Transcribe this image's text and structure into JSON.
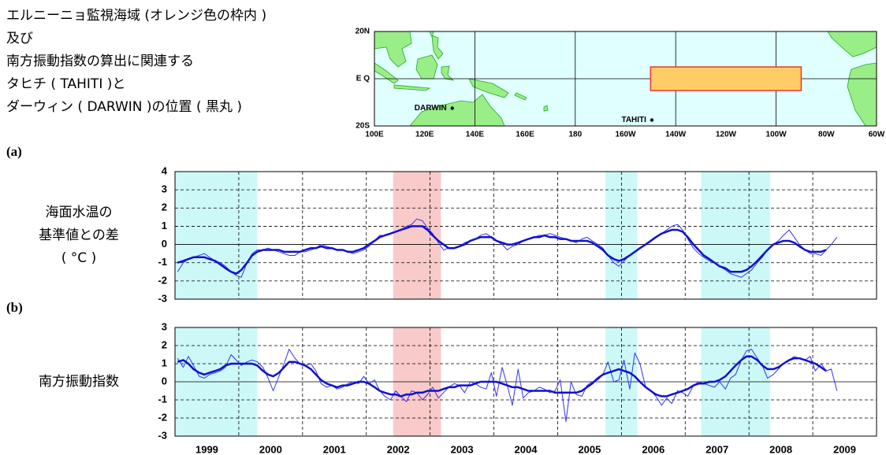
{
  "chart_data": [
    {
      "type": "map",
      "title_lines": [
        "エルニーニョ監視海域 (オレンジ色の枠内 )",
        "及び",
        "南方振動指数の算出に関連する",
        "タヒチ ( TAHITI )と",
        "ダーウィン ( DARWIN )の位置 ( 黒丸 )"
      ],
      "xlim": [
        100,
        300
      ],
      "ylim": [
        -20,
        20
      ],
      "xticks": [
        {
          "value": 100,
          "label": "100E"
        },
        {
          "value": 120,
          "label": "120E"
        },
        {
          "value": 140,
          "label": "140E"
        },
        {
          "value": 160,
          "label": "160E"
        },
        {
          "value": 180,
          "label": "180"
        },
        {
          "value": 200,
          "label": "160W"
        },
        {
          "value": 220,
          "label": "140W"
        },
        {
          "value": 240,
          "label": "120W"
        },
        {
          "value": 260,
          "label": "100W"
        },
        {
          "value": 280,
          "label": "80W"
        },
        {
          "value": 300,
          "label": "60W"
        }
      ],
      "yticks": [
        {
          "value": 20,
          "label": "20N"
        },
        {
          "value": 0,
          "label": "E Q"
        },
        {
          "value": -20,
          "label": "20S"
        }
      ],
      "grid_x": [
        140,
        180,
        220,
        260
      ],
      "grid_y": [
        0
      ],
      "region": {
        "lon": [
          210,
          270
        ],
        "lat": [
          -5,
          5
        ],
        "color": "#ffcc66",
        "edge": "#ee3333"
      },
      "points": [
        {
          "name": "DARWIN",
          "lon": 131,
          "lat": -12.5
        },
        {
          "name": "TAHITI",
          "lon": 210.5,
          "lat": -17.5
        }
      ],
      "ocean_color": "#e0ffff",
      "land_color": "#99ee88"
    },
    {
      "type": "line",
      "panel": "(a)",
      "ylabel": [
        "海面水温の",
        "基準値との差",
        "( °C )"
      ],
      "xlim": [
        1999,
        2010
      ],
      "ylim": [
        -3,
        4
      ],
      "yticks": [
        -3,
        -2,
        -1,
        0,
        1,
        2,
        3,
        4
      ],
      "xgrid": [
        2000,
        2001,
        2002,
        2003,
        2004,
        2005,
        2006,
        2007,
        2008,
        2009
      ],
      "periods": [
        {
          "start": 1999.0,
          "end": 2000.29,
          "color": "#ccf8f8"
        },
        {
          "start": 2002.42,
          "end": 2003.17,
          "color": "#f9caca"
        },
        {
          "start": 2005.75,
          "end": 2006.25,
          "color": "#ccf8f8"
        },
        {
          "start": 2007.25,
          "end": 2008.33,
          "color": "#ccf8f8"
        }
      ],
      "x": [
        1999.04,
        1999.13,
        1999.21,
        1999.29,
        1999.38,
        1999.46,
        1999.54,
        1999.63,
        1999.71,
        1999.79,
        1999.88,
        1999.96,
        2000.04,
        2000.13,
        2000.21,
        2000.29,
        2000.38,
        2000.46,
        2000.54,
        2000.63,
        2000.71,
        2000.79,
        2000.88,
        2000.96,
        2001.04,
        2001.13,
        2001.21,
        2001.29,
        2001.38,
        2001.46,
        2001.54,
        2001.63,
        2001.71,
        2001.79,
        2001.88,
        2001.96,
        2002.04,
        2002.13,
        2002.21,
        2002.29,
        2002.38,
        2002.46,
        2002.54,
        2002.63,
        2002.71,
        2002.79,
        2002.88,
        2002.96,
        2003.04,
        2003.13,
        2003.21,
        2003.29,
        2003.38,
        2003.46,
        2003.54,
        2003.63,
        2003.71,
        2003.79,
        2003.88,
        2003.96,
        2004.04,
        2004.13,
        2004.21,
        2004.29,
        2004.38,
        2004.46,
        2004.54,
        2004.63,
        2004.71,
        2004.79,
        2004.88,
        2004.96,
        2005.04,
        2005.13,
        2005.21,
        2005.29,
        2005.38,
        2005.46,
        2005.54,
        2005.63,
        2005.71,
        2005.79,
        2005.88,
        2005.96,
        2006.04,
        2006.13,
        2006.21,
        2006.29,
        2006.38,
        2006.46,
        2006.54,
        2006.63,
        2006.71,
        2006.79,
        2006.88,
        2006.96,
        2007.04,
        2007.13,
        2007.21,
        2007.29,
        2007.38,
        2007.46,
        2007.54,
        2007.63,
        2007.71,
        2007.79,
        2007.88,
        2007.96,
        2008.04,
        2008.13,
        2008.21,
        2008.29,
        2008.38,
        2008.46,
        2008.54,
        2008.63,
        2008.71,
        2008.79,
        2008.88,
        2008.96,
        2009.04,
        2009.13,
        2009.21,
        2009.29,
        2009.38
      ],
      "series": [
        {
          "color": "#3333ee",
          "width": 1,
          "values": [
            -1.5,
            -1.0,
            -0.8,
            -0.7,
            -0.6,
            -0.5,
            -0.7,
            -0.9,
            -1.0,
            -1.2,
            -1.5,
            -1.7,
            -1.8,
            -1.0,
            -0.5,
            -0.3,
            -0.3,
            -0.2,
            -0.3,
            -0.4,
            -0.5,
            -0.6,
            -0.6,
            -0.4,
            -0.4,
            -0.3,
            -0.2,
            0.0,
            -0.1,
            -0.2,
            -0.3,
            -0.3,
            -0.4,
            -0.5,
            -0.4,
            -0.3,
            -0.1,
            0.2,
            0.5,
            0.5,
            0.6,
            0.7,
            0.8,
            1.0,
            1.1,
            1.4,
            1.3,
            0.9,
            0.6,
            0.1,
            -0.3,
            -0.2,
            -0.2,
            -0.1,
            0.1,
            0.2,
            0.3,
            0.5,
            0.6,
            0.4,
            0.2,
            0.0,
            -0.3,
            -0.1,
            0.0,
            0.2,
            0.3,
            0.4,
            0.5,
            0.5,
            0.6,
            0.5,
            0.4,
            0.3,
            0.2,
            0.1,
            0.3,
            0.4,
            0.2,
            0.0,
            -0.2,
            -0.6,
            -1.0,
            -1.2,
            -0.9,
            -0.6,
            -0.4,
            -0.2,
            0.0,
            0.2,
            0.4,
            0.6,
            0.8,
            1.0,
            1.1,
            0.8,
            0.3,
            -0.2,
            -0.5,
            -0.7,
            -0.9,
            -1.0,
            -1.2,
            -1.4,
            -1.6,
            -1.7,
            -1.8,
            -1.6,
            -1.4,
            -1.0,
            -0.7,
            -0.3,
            0.0,
            0.2,
            0.5,
            0.8,
            0.4,
            0.0,
            -0.3,
            -0.5,
            -0.5,
            -0.6,
            -0.3,
            0.0,
            0.4
          ]
        },
        {
          "color": "#1111cc",
          "width": 2.5,
          "values": [
            -1.0,
            -0.9,
            -0.8,
            -0.7,
            -0.7,
            -0.7,
            -0.8,
            -0.9,
            -1.1,
            -1.3,
            -1.5,
            -1.6,
            -1.4,
            -1.0,
            -0.6,
            -0.4,
            -0.3,
            -0.3,
            -0.3,
            -0.3,
            -0.4,
            -0.4,
            -0.4,
            -0.4,
            -0.3,
            -0.2,
            -0.2,
            -0.1,
            -0.2,
            -0.2,
            -0.3,
            -0.3,
            -0.4,
            -0.4,
            -0.3,
            -0.2,
            0.0,
            0.2,
            0.4,
            0.5,
            0.6,
            0.7,
            0.8,
            0.9,
            1.0,
            1.0,
            1.0,
            0.8,
            0.5,
            0.2,
            0.0,
            -0.2,
            -0.2,
            -0.1,
            0.0,
            0.2,
            0.3,
            0.4,
            0.4,
            0.4,
            0.2,
            0.1,
            0.0,
            0.0,
            0.1,
            0.2,
            0.3,
            0.4,
            0.4,
            0.5,
            0.4,
            0.4,
            0.3,
            0.3,
            0.2,
            0.2,
            0.2,
            0.2,
            0.1,
            -0.1,
            -0.3,
            -0.6,
            -0.8,
            -0.9,
            -0.8,
            -0.6,
            -0.4,
            -0.2,
            0.0,
            0.2,
            0.4,
            0.6,
            0.7,
            0.8,
            0.8,
            0.7,
            0.4,
            0.0,
            -0.3,
            -0.6,
            -0.8,
            -1.0,
            -1.2,
            -1.3,
            -1.5,
            -1.5,
            -1.5,
            -1.4,
            -1.2,
            -0.9,
            -0.6,
            -0.3,
            0.0,
            0.1,
            0.2,
            0.2,
            0.1,
            -0.1,
            -0.3,
            -0.4,
            -0.4,
            -0.4,
            -0.3,
            null,
            null
          ]
        }
      ]
    },
    {
      "type": "line",
      "panel": "(b)",
      "ylabel": [
        "南方振動指数"
      ],
      "xlim": [
        1999,
        2010
      ],
      "ylim": [
        -3,
        3
      ],
      "yticks": [
        -3,
        -2,
        -1,
        0,
        1,
        2,
        3
      ],
      "xticks": [
        1999,
        2000,
        2001,
        2002,
        2003,
        2004,
        2005,
        2006,
        2007,
        2008,
        2009
      ],
      "periods": [
        {
          "start": 1999.0,
          "end": 2000.29,
          "color": "#ccf8f8"
        },
        {
          "start": 2002.42,
          "end": 2003.17,
          "color": "#f9caca"
        },
        {
          "start": 2005.75,
          "end": 2006.25,
          "color": "#ccf8f8"
        },
        {
          "start": 2007.25,
          "end": 2008.33,
          "color": "#ccf8f8"
        }
      ],
      "x": [
        1999.04,
        1999.13,
        1999.21,
        1999.29,
        1999.38,
        1999.46,
        1999.54,
        1999.63,
        1999.71,
        1999.79,
        1999.88,
        1999.96,
        2000.04,
        2000.13,
        2000.21,
        2000.29,
        2000.38,
        2000.46,
        2000.54,
        2000.63,
        2000.71,
        2000.79,
        2000.88,
        2000.96,
        2001.04,
        2001.13,
        2001.21,
        2001.29,
        2001.38,
        2001.46,
        2001.54,
        2001.63,
        2001.71,
        2001.79,
        2001.88,
        2001.96,
        2002.04,
        2002.13,
        2002.21,
        2002.29,
        2002.38,
        2002.46,
        2002.54,
        2002.63,
        2002.71,
        2002.79,
        2002.88,
        2002.96,
        2003.04,
        2003.13,
        2003.21,
        2003.29,
        2003.38,
        2003.46,
        2003.54,
        2003.63,
        2003.71,
        2003.79,
        2003.88,
        2003.96,
        2004.04,
        2004.13,
        2004.21,
        2004.29,
        2004.38,
        2004.46,
        2004.54,
        2004.63,
        2004.71,
        2004.79,
        2004.88,
        2004.96,
        2005.04,
        2005.13,
        2005.21,
        2005.29,
        2005.38,
        2005.46,
        2005.54,
        2005.63,
        2005.71,
        2005.79,
        2005.88,
        2005.96,
        2006.04,
        2006.13,
        2006.21,
        2006.29,
        2006.38,
        2006.46,
        2006.54,
        2006.63,
        2006.71,
        2006.79,
        2006.88,
        2006.96,
        2007.04,
        2007.13,
        2007.21,
        2007.29,
        2007.38,
        2007.46,
        2007.54,
        2007.63,
        2007.71,
        2007.79,
        2007.88,
        2007.96,
        2008.04,
        2008.13,
        2008.21,
        2008.29,
        2008.38,
        2008.46,
        2008.54,
        2008.63,
        2008.71,
        2008.79,
        2008.88,
        2008.96,
        2009.04,
        2009.13,
        2009.21,
        2009.29,
        2009.38
      ],
      "series": [
        {
          "color": "#3333ee",
          "width": 1,
          "values": [
            1.3,
            0.8,
            1.4,
            0.9,
            0.3,
            0.2,
            0.4,
            0.5,
            0.6,
            0.8,
            1.5,
            1.2,
            0.9,
            1.1,
            1.2,
            1.1,
            0.8,
            0.2,
            -0.5,
            0.3,
            1.0,
            1.8,
            1.3,
            1.0,
            0.9,
            1.0,
            0.6,
            -0.1,
            -0.3,
            -0.2,
            -0.4,
            -0.3,
            -0.1,
            0.0,
            -0.1,
            0.3,
            -0.1,
            0.1,
            -0.5,
            -0.8,
            -1.0,
            -0.5,
            -0.8,
            -1.1,
            -0.5,
            -0.6,
            -1.0,
            -0.7,
            -0.3,
            -0.9,
            -0.6,
            -0.3,
            -0.1,
            -0.2,
            -0.6,
            0.0,
            -0.1,
            -0.3,
            -0.4,
            0.5,
            -0.8,
            0.8,
            -0.2,
            -1.3,
            0.7,
            -0.9,
            -0.6,
            -0.5,
            -0.3,
            -0.4,
            -0.6,
            -0.5,
            0.1,
            -2.2,
            0.0,
            -0.7,
            -0.8,
            -0.2,
            0.0,
            0.1,
            0.4,
            1.1,
            0.0,
            0.1,
            1.2,
            -0.4,
            1.6,
            1.0,
            -0.3,
            -0.5,
            -0.8,
            -1.3,
            -0.9,
            -1.2,
            -0.5,
            -0.6,
            -0.8,
            -0.2,
            0.0,
            -0.1,
            -0.2,
            -0.3,
            0.0,
            -0.4,
            0.2,
            0.4,
            1.2,
            1.7,
            1.8,
            1.3,
            0.9,
            0.2,
            0.4,
            0.7,
            1.0,
            1.2,
            1.4,
            1.3,
            1.2,
            1.4,
            0.6,
            1.0,
            0.6,
            0.7,
            -0.5
          ]
        },
        {
          "color": "#1111cc",
          "width": 2.5,
          "values": [
            1.1,
            1.2,
            1.0,
            0.7,
            0.5,
            0.4,
            0.5,
            0.6,
            0.7,
            0.9,
            1.0,
            1.0,
            1.0,
            1.0,
            1.0,
            0.9,
            0.6,
            0.4,
            0.3,
            0.5,
            0.8,
            1.1,
            1.1,
            1.0,
            0.9,
            0.7,
            0.4,
            0.1,
            -0.1,
            -0.2,
            -0.3,
            -0.2,
            -0.2,
            -0.1,
            0.0,
            0.0,
            -0.1,
            -0.3,
            -0.5,
            -0.6,
            -0.7,
            -0.7,
            -0.8,
            -0.7,
            -0.7,
            -0.6,
            -0.6,
            -0.5,
            -0.5,
            -0.5,
            -0.4,
            -0.3,
            -0.3,
            -0.2,
            -0.2,
            -0.2,
            -0.1,
            0.0,
            0.0,
            0.0,
            0.0,
            -0.1,
            -0.2,
            -0.3,
            -0.3,
            -0.4,
            -0.5,
            -0.5,
            -0.5,
            -0.5,
            -0.5,
            -0.6,
            -0.6,
            -0.6,
            -0.6,
            -0.6,
            -0.5,
            -0.3,
            -0.1,
            0.2,
            0.4,
            0.5,
            0.6,
            0.7,
            0.6,
            0.5,
            0.3,
            0.0,
            -0.3,
            -0.5,
            -0.7,
            -0.8,
            -0.8,
            -0.7,
            -0.6,
            -0.5,
            -0.4,
            -0.2,
            -0.1,
            -0.1,
            0.0,
            0.0,
            0.1,
            0.3,
            0.6,
            0.9,
            1.2,
            1.4,
            1.4,
            1.2,
            0.9,
            0.7,
            0.7,
            0.8,
            1.0,
            1.2,
            1.3,
            1.3,
            1.2,
            1.1,
            1.0,
            0.8,
            0.6,
            null,
            null
          ]
        }
      ]
    }
  ]
}
